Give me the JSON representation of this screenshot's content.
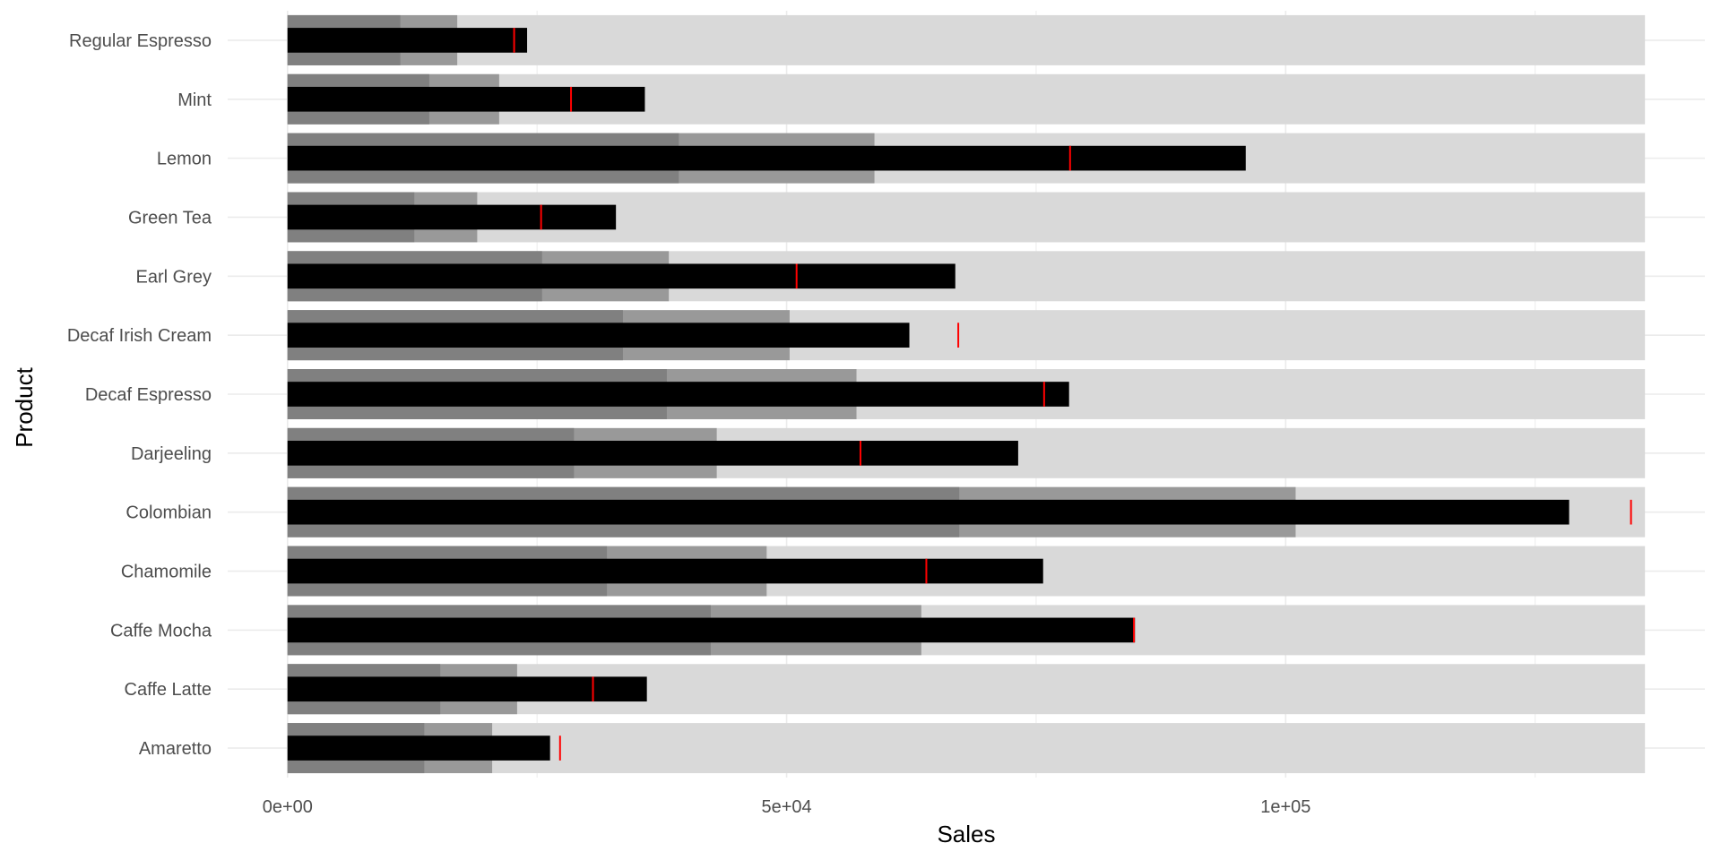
{
  "chart_data": {
    "type": "bar",
    "variant": "bullet",
    "xlabel": "Sales",
    "ylabel": "Product",
    "xlim": [
      -6000,
      142000
    ],
    "x_ticks": [
      {
        "value": 0,
        "label": "0e+00"
      },
      {
        "value": 50000,
        "label": "5e+04"
      },
      {
        "value": 100000,
        "label": "1e+05"
      }
    ],
    "grid": true,
    "categories": [
      "Amaretto",
      "Caffe Latte",
      "Caffe Mocha",
      "Chamomile",
      "Colombian",
      "Darjeeling",
      "Decaf Espresso",
      "Decaf Irish Cream",
      "Earl Grey",
      "Green Tea",
      "Lemon",
      "Mint",
      "Regular Espresso"
    ],
    "series": [
      {
        "role": "range_max",
        "values": [
          136000,
          136000,
          136000,
          136000,
          136000,
          136000,
          136000,
          136000,
          136000,
          136000,
          136000,
          136000,
          136000
        ],
        "color": "#d9d9d9"
      },
      {
        "role": "range_mid",
        "values": [
          20500,
          23000,
          63500,
          48000,
          101000,
          43000,
          57000,
          50300,
          38200,
          19000,
          58800,
          21200,
          17000
        ],
        "color": "#999999"
      },
      {
        "role": "range_low",
        "values": [
          13700,
          15300,
          42400,
          32000,
          67300,
          28700,
          38000,
          33600,
          25500,
          12700,
          39200,
          14200,
          11300
        ],
        "color": "#808080"
      },
      {
        "role": "actual",
        "values": [
          26300,
          36000,
          84900,
          75700,
          128400,
          73200,
          78300,
          62300,
          66900,
          32900,
          96000,
          35800,
          24000
        ],
        "color": "#000000"
      },
      {
        "role": "target",
        "values": [
          27300,
          30600,
          84800,
          64000,
          134600,
          57400,
          75800,
          67200,
          51000,
          25400,
          78400,
          28400,
          22700
        ],
        "color": "#ff0000"
      }
    ]
  }
}
